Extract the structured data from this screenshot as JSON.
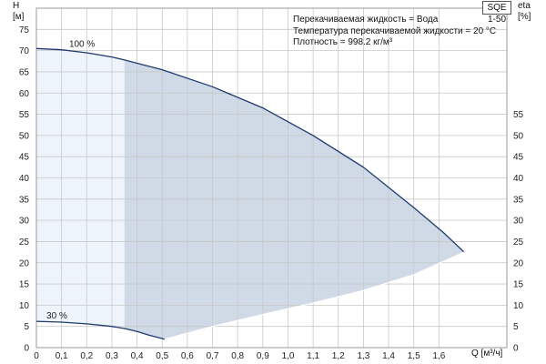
{
  "model": "SQE 1-50",
  "info": {
    "fluid": "Перекачиваемая жидкость = Вода",
    "temperature": "Температура перекачиваемой жидкости = 20 °C",
    "density": "Плотность = 998.2 кг/м³"
  },
  "chart_data": {
    "type": "line",
    "left_axis": {
      "label": "H",
      "unit": "[м]",
      "ylim": [
        0,
        80
      ],
      "ticks": [
        "0",
        "5",
        "10",
        "15",
        "20",
        "25",
        "30",
        "35",
        "40",
        "45",
        "50",
        "55",
        "60",
        "65",
        "70",
        "75"
      ]
    },
    "right_axis": {
      "label": "eta",
      "unit": "[%]",
      "ylim": [
        0,
        80
      ],
      "ticks": [
        "0",
        "5",
        "10",
        "15",
        "20",
        "25",
        "30",
        "35",
        "40",
        "45",
        "50",
        "55"
      ]
    },
    "x_axis": {
      "label": "Q [м³/ч]",
      "xlim": [
        0,
        1.87
      ],
      "ticks": [
        "0",
        "0,1",
        "0,2",
        "0,3",
        "0,4",
        "0,5",
        "0,6",
        "0,7",
        "0,8",
        "0,9",
        "1,0",
        "1,1",
        "1,2",
        "1,3",
        "1,4",
        "1,5",
        "1,6"
      ]
    },
    "grid": true,
    "series": [
      {
        "name": "100 %",
        "x": [
          0,
          0.1,
          0.2,
          0.3,
          0.35,
          0.5,
          0.7,
          0.9,
          1.1,
          1.3,
          1.5,
          1.62,
          1.7
        ],
        "y": [
          70.5,
          70.2,
          69.5,
          68.5,
          67.8,
          65.5,
          61.5,
          56.5,
          50.0,
          42.5,
          33.0,
          27.0,
          22.5
        ]
      },
      {
        "name": "30 %",
        "x": [
          0,
          0.1,
          0.2,
          0.3,
          0.35,
          0.4,
          0.45,
          0.51
        ],
        "y": [
          6.2,
          6.0,
          5.6,
          5.0,
          4.5,
          3.8,
          2.9,
          2.0
        ]
      },
      {
        "name": "",
        "x": [
          0.51,
          0.7,
          0.9,
          1.1,
          1.3,
          1.5,
          1.7
        ],
        "y": [
          2.0,
          5.0,
          7.8,
          10.5,
          13.5,
          17.2,
          22.5
        ]
      }
    ],
    "shaded_regions": [
      {
        "x_from": 0,
        "x_to": 0.35,
        "color": "#eef4fc"
      },
      {
        "x_from": 0.35,
        "x_to": 1.7,
        "color": "#cfdae6"
      }
    ],
    "curve_color": "#1c3a6e"
  }
}
